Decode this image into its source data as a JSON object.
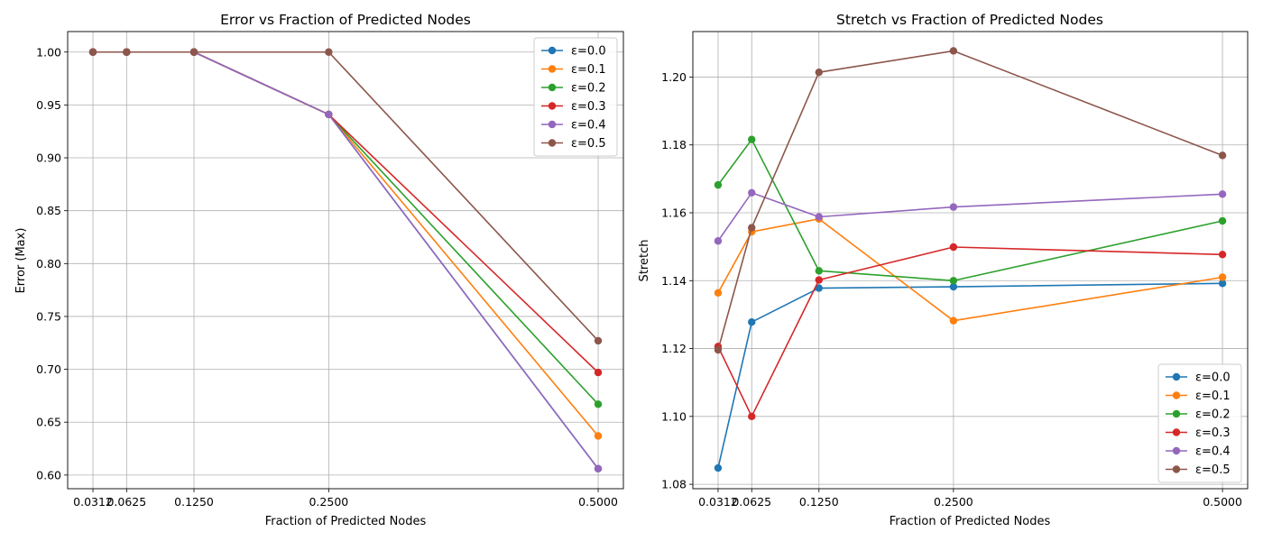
{
  "chart_data": [
    {
      "type": "line",
      "title": "Error vs Fraction of Predicted Nodes",
      "xlabel": "Fraction of Predicted Nodes",
      "ylabel": "Error (Max)",
      "x": [
        0.03125,
        0.0625,
        0.125,
        0.25,
        0.5
      ],
      "xtick_labels": [
        "0.0312",
        "0.0625",
        "0.1250",
        "0.2500",
        "0.5000"
      ],
      "yticks": [
        0.6,
        0.65,
        0.7,
        0.75,
        0.8,
        0.85,
        0.9,
        0.95,
        1.0
      ],
      "ytick_labels": [
        "0.60",
        "0.65",
        "0.70",
        "0.75",
        "0.80",
        "0.85",
        "0.90",
        "0.95",
        "1.00"
      ],
      "xlim": [
        0.0078,
        0.5234
      ],
      "ylim": [
        0.5871,
        1.0194
      ],
      "grid": true,
      "legend": "upper right",
      "series": [
        {
          "name": "ε=0.0",
          "color": "#1f77b4",
          "values": [
            1.0,
            1.0,
            1.0,
            0.941,
            0.606
          ]
        },
        {
          "name": "ε=0.1",
          "color": "#ff7f0e",
          "values": [
            1.0,
            1.0,
            1.0,
            0.941,
            0.637
          ]
        },
        {
          "name": "ε=0.2",
          "color": "#2ca02c",
          "values": [
            1.0,
            1.0,
            1.0,
            0.941,
            0.667
          ]
        },
        {
          "name": "ε=0.3",
          "color": "#d62728",
          "values": [
            1.0,
            1.0,
            1.0,
            0.941,
            0.697
          ]
        },
        {
          "name": "ε=0.4",
          "color": "#9467bd",
          "values": [
            1.0,
            1.0,
            1.0,
            0.941,
            0.606
          ]
        },
        {
          "name": "ε=0.5",
          "color": "#8c564b",
          "values": [
            1.0,
            1.0,
            1.0,
            1.0,
            0.727
          ]
        }
      ]
    },
    {
      "type": "line",
      "title": "Stretch vs Fraction of Predicted Nodes",
      "xlabel": "Fraction of Predicted Nodes",
      "ylabel": "Stretch",
      "x": [
        0.03125,
        0.0625,
        0.125,
        0.25,
        0.5
      ],
      "xtick_labels": [
        "0.0312",
        "0.0625",
        "0.1250",
        "0.2500",
        "0.5000"
      ],
      "yticks": [
        1.08,
        1.1,
        1.12,
        1.14,
        1.16,
        1.18,
        1.2
      ],
      "ytick_labels": [
        "1.08",
        "1.10",
        "1.12",
        "1.14",
        "1.16",
        "1.18",
        "1.20"
      ],
      "xlim": [
        0.0078,
        0.5234
      ],
      "ylim": [
        1.0787,
        1.2134
      ],
      "grid": true,
      "legend": "lower right",
      "series": [
        {
          "name": "ε=0.0",
          "color": "#1f77b4",
          "values": [
            1.0848,
            1.1278,
            1.1378,
            1.1382,
            1.1392
          ]
        },
        {
          "name": "ε=0.1",
          "color": "#ff7f0e",
          "values": [
            1.1364,
            1.1544,
            1.1582,
            1.1282,
            1.141
          ]
        },
        {
          "name": "ε=0.2",
          "color": "#2ca02c",
          "values": [
            1.1682,
            1.1816,
            1.1429,
            1.14,
            1.1576
          ]
        },
        {
          "name": "ε=0.3",
          "color": "#d62728",
          "values": [
            1.1206,
            1.1,
            1.1402,
            1.1499,
            1.1477
          ]
        },
        {
          "name": "ε=0.4",
          "color": "#9467bd",
          "values": [
            1.1517,
            1.1659,
            1.1588,
            1.1617,
            1.1655
          ]
        },
        {
          "name": "ε=0.5",
          "color": "#8c564b",
          "values": [
            1.1196,
            1.1556,
            1.2014,
            1.2077,
            1.1769
          ]
        }
      ]
    }
  ]
}
